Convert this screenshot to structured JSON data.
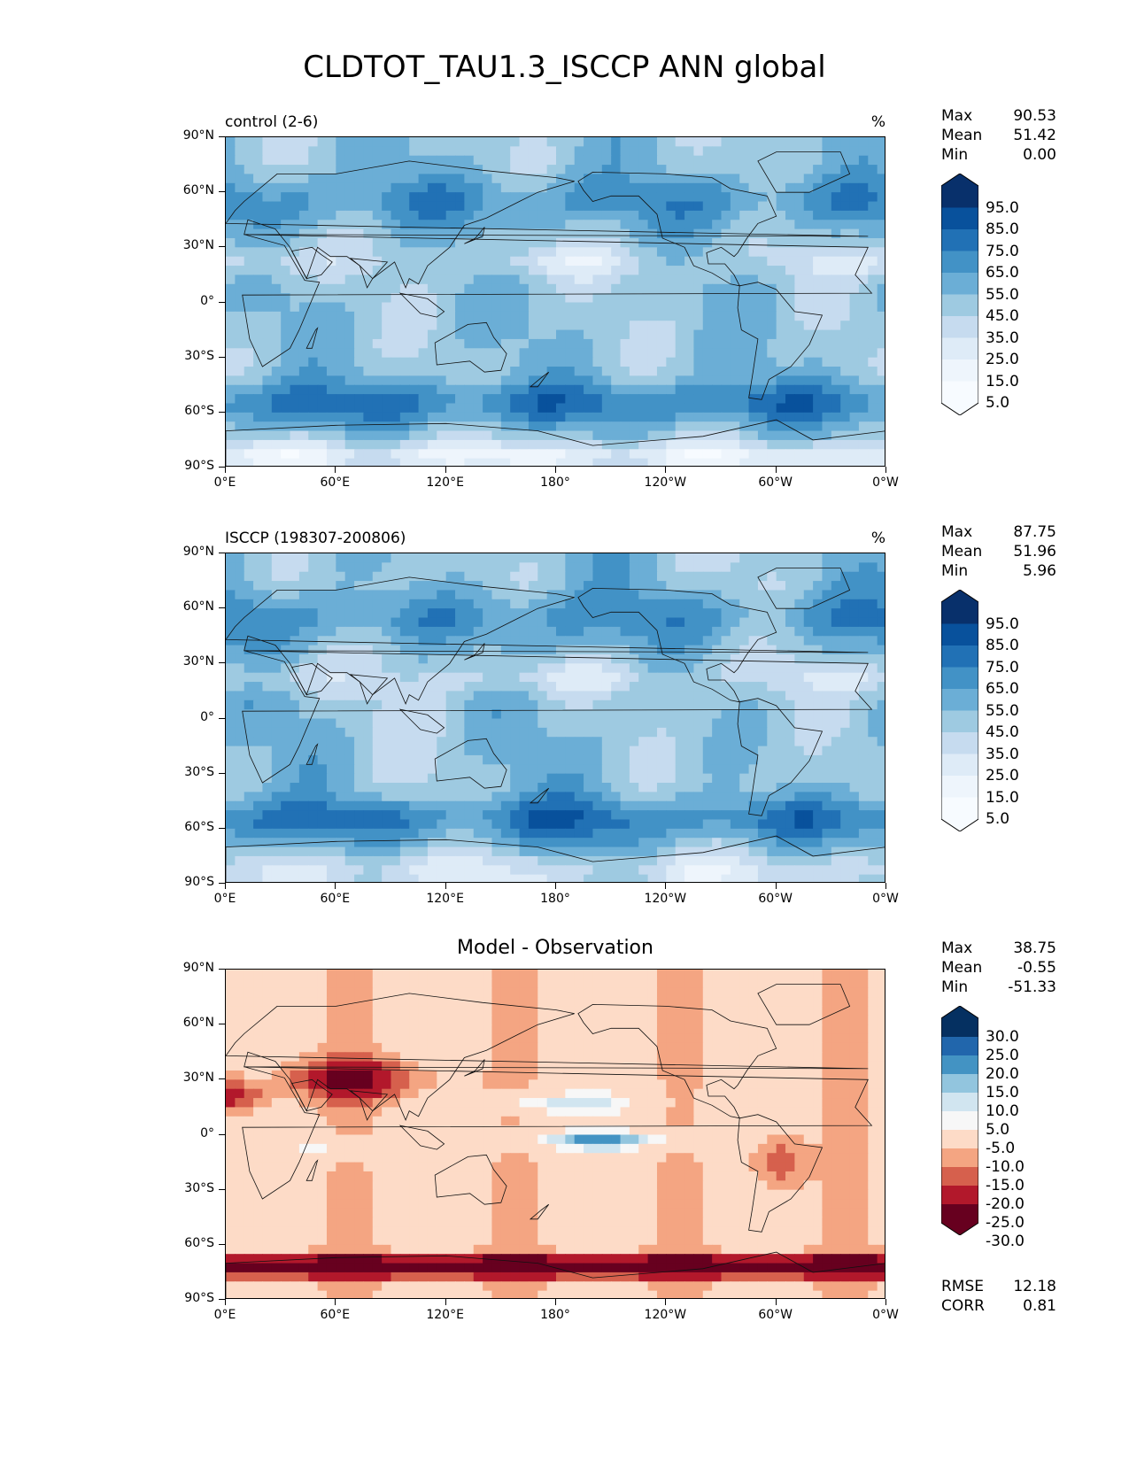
{
  "title": "CLDTOT_TAU1.3_ISCCP ANN global",
  "chart_data": [
    {
      "type": "heatmap",
      "panel": "test",
      "title": "control (2-6)",
      "units": "%",
      "stats": {
        "Max": "90.53",
        "Mean": "51.42",
        "Min": "0.00"
      },
      "colorbar_labels": [
        "95.0",
        "85.0",
        "75.0",
        "65.0",
        "55.0",
        "45.0",
        "35.0",
        "25.0",
        "15.0",
        "5.0"
      ],
      "colorbar_colors": [
        "#08306b",
        "#08519c",
        "#2171b5",
        "#4292c6",
        "#6baed6",
        "#9ecae1",
        "#c6dbef",
        "#deebf7",
        "#eef5fc",
        "#f7fbff"
      ],
      "lat_ticks": [
        "90°N",
        "60°N",
        "30°N",
        "0°",
        "30°S",
        "60°S",
        "90°S"
      ],
      "lon_ticks": [
        "0°E",
        "60°E",
        "120°E",
        "180°",
        "120°W",
        "60°W",
        "0°W"
      ],
      "lat_range": [
        -90,
        90
      ],
      "lon_range": [
        0,
        360
      ]
    },
    {
      "type": "heatmap",
      "panel": "reference",
      "title": "ISCCP (198307-200806)",
      "units": "%",
      "stats": {
        "Max": "87.75",
        "Mean": "51.96",
        "Min": "5.96"
      },
      "colorbar_labels": [
        "95.0",
        "85.0",
        "75.0",
        "65.0",
        "55.0",
        "45.0",
        "35.0",
        "25.0",
        "15.0",
        "5.0"
      ],
      "colorbar_colors": [
        "#08306b",
        "#08519c",
        "#2171b5",
        "#4292c6",
        "#6baed6",
        "#9ecae1",
        "#c6dbef",
        "#deebf7",
        "#eef5fc",
        "#f7fbff"
      ],
      "lat_ticks": [
        "90°N",
        "60°N",
        "30°N",
        "0°",
        "30°S",
        "60°S",
        "90°S"
      ],
      "lon_ticks": [
        "0°E",
        "60°E",
        "120°E",
        "180°",
        "120°W",
        "60°W",
        "0°W"
      ],
      "lat_range": [
        -90,
        90
      ],
      "lon_range": [
        0,
        360
      ]
    },
    {
      "type": "heatmap",
      "panel": "difference",
      "title": "Model - Observation",
      "units": "",
      "stats": {
        "Max": "38.75",
        "Mean": "-0.55",
        "Min": "-51.33"
      },
      "metrics": {
        "RMSE": "12.18",
        "CORR": "0.81"
      },
      "colorbar_labels": [
        "30.0",
        "25.0",
        "20.0",
        "15.0",
        "10.0",
        "5.0",
        "-5.0",
        "-10.0",
        "-15.0",
        "-20.0",
        "-25.0",
        "-30.0"
      ],
      "colorbar_colors": [
        "#053061",
        "#2166ac",
        "#4393c3",
        "#92c5de",
        "#d1e5f0",
        "#f7f7f7",
        "#fddbc7",
        "#f4a582",
        "#d6604d",
        "#b2182b",
        "#67001f"
      ],
      "lat_ticks": [
        "90°N",
        "60°N",
        "30°N",
        "0°",
        "30°S",
        "60°S",
        "90°S"
      ],
      "lon_ticks": [
        "0°E",
        "60°E",
        "120°E",
        "180°",
        "120°W",
        "60°W",
        "0°W"
      ],
      "lat_range": [
        -90,
        90
      ],
      "lon_range": [
        0,
        360
      ]
    }
  ]
}
